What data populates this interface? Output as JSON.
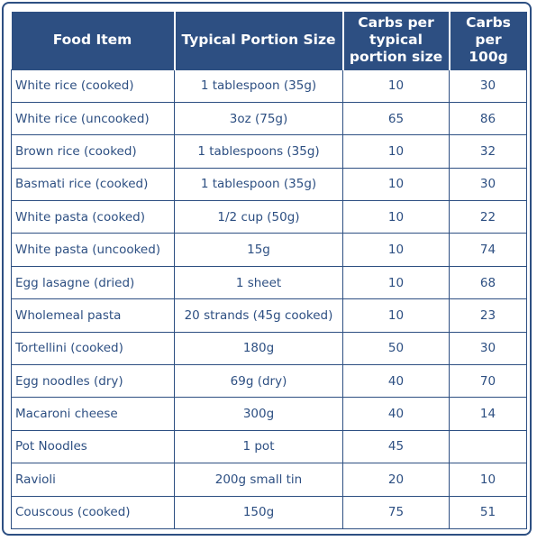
{
  "table": {
    "headers": [
      "Food Item",
      "Typical Portion Size",
      "Carbs per typical portion size",
      "Carbs per 100g"
    ],
    "rows": [
      {
        "food": "White rice (cooked)",
        "portion": "1 tablespoon (35g)",
        "carbs_portion": "10",
        "carbs_100g": "30"
      },
      {
        "food": "White rice (uncooked)",
        "portion": "3oz (75g)",
        "carbs_portion": "65",
        "carbs_100g": "86"
      },
      {
        "food": "Brown rice (cooked)",
        "portion": "1 tablespoons (35g)",
        "carbs_portion": "10",
        "carbs_100g": "32"
      },
      {
        "food": "Basmati rice (cooked)",
        "portion": "1 tablespoon (35g)",
        "carbs_portion": "10",
        "carbs_100g": "30"
      },
      {
        "food": "White pasta (cooked)",
        "portion": "1/2 cup (50g)",
        "carbs_portion": "10",
        "carbs_100g": "22"
      },
      {
        "food": "White pasta (uncooked)",
        "portion": "15g",
        "carbs_portion": "10",
        "carbs_100g": "74"
      },
      {
        "food": "Egg lasagne (dried)",
        "portion": "1 sheet",
        "carbs_portion": "10",
        "carbs_100g": "68"
      },
      {
        "food": "Wholemeal pasta",
        "portion": "20 strands (45g cooked)",
        "carbs_portion": "10",
        "carbs_100g": "23"
      },
      {
        "food": "Tortellini (cooked)",
        "portion": "180g",
        "carbs_portion": "50",
        "carbs_100g": "30"
      },
      {
        "food": "Egg noodles (dry)",
        "portion": "69g (dry)",
        "carbs_portion": "40",
        "carbs_100g": "70"
      },
      {
        "food": "Macaroni cheese",
        "portion": "300g",
        "carbs_portion": "40",
        "carbs_100g": "14"
      },
      {
        "food": "Pot Noodles",
        "portion": "1 pot",
        "carbs_portion": "45",
        "carbs_100g": ""
      },
      {
        "food": "Ravioli",
        "portion": "200g small tin",
        "carbs_portion": "20",
        "carbs_100g": "10"
      },
      {
        "food": "Couscous (cooked)",
        "portion": "150g",
        "carbs_portion": "75",
        "carbs_100g": "51"
      }
    ]
  },
  "colors": {
    "header_bg": "#2d4f82",
    "header_text": "#ffffff",
    "cell_text": "#2d4f82",
    "border": "#2d4f82"
  }
}
